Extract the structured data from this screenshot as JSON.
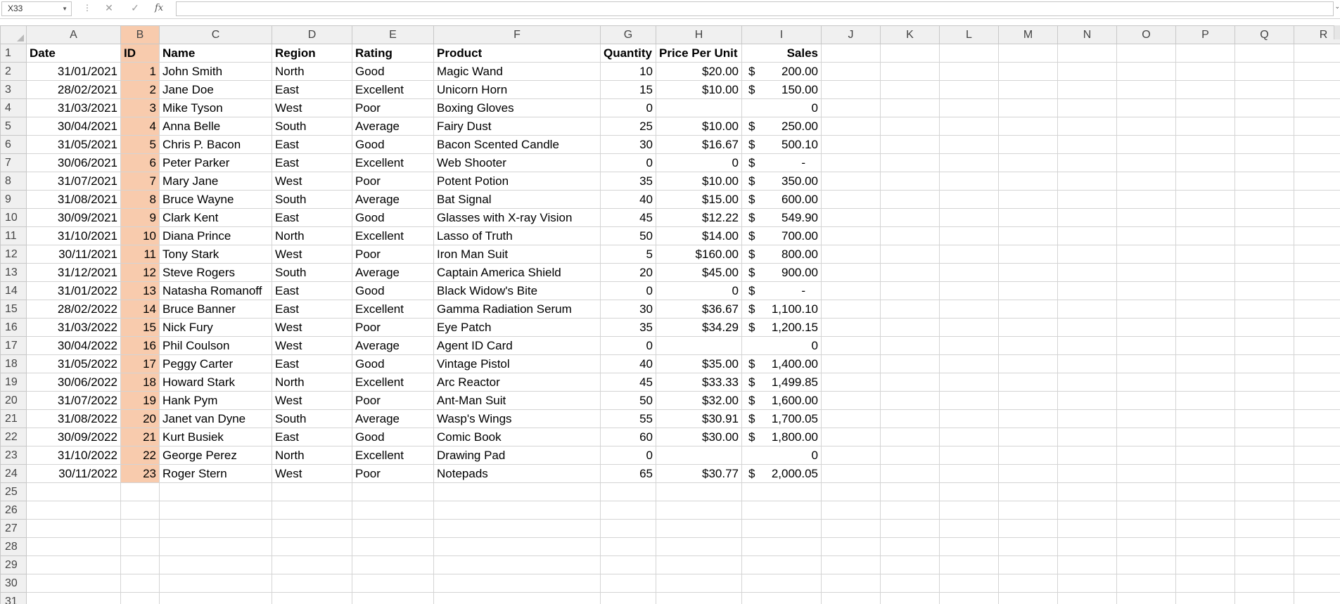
{
  "formula_bar": {
    "name_box": "X33",
    "cancel_icon": "✕",
    "enter_icon": "✓",
    "fx_label": "fx",
    "formula": ""
  },
  "columns": [
    "A",
    "B",
    "C",
    "D",
    "E",
    "F",
    "G",
    "H",
    "I",
    "J",
    "K",
    "L",
    "M",
    "N",
    "O",
    "P",
    "Q",
    "R"
  ],
  "header_row": [
    "Date",
    "ID",
    "Name",
    "Region",
    "Rating",
    "Product",
    "Quantity",
    "Price Per Unit",
    "Sales"
  ],
  "rows": [
    [
      "31/01/2021",
      "1",
      "John Smith",
      "North",
      "Good",
      "Magic Wand",
      "10",
      "$20.00",
      "$",
      "200.00"
    ],
    [
      "28/02/2021",
      "2",
      "Jane Doe",
      "East",
      "Excellent",
      "Unicorn Horn",
      "15",
      "$10.00",
      "$",
      "150.00"
    ],
    [
      "31/03/2021",
      "3",
      "Mike Tyson",
      "West",
      "Poor",
      "Boxing Gloves",
      "0",
      "",
      "",
      "0"
    ],
    [
      "30/04/2021",
      "4",
      "Anna Belle",
      "South",
      "Average",
      "Fairy Dust",
      "25",
      "$10.00",
      "$",
      "250.00"
    ],
    [
      "31/05/2021",
      "5",
      "Chris P. Bacon",
      "East",
      "Good",
      "Bacon Scented Candle",
      "30",
      "$16.67",
      "$",
      "500.10"
    ],
    [
      "30/06/2021",
      "6",
      "Peter Parker",
      "East",
      "Excellent",
      "Web Shooter",
      "0",
      "0",
      "$",
      "-"
    ],
    [
      "31/07/2021",
      "7",
      "Mary Jane",
      "West",
      "Poor",
      "Potent Potion",
      "35",
      "$10.00",
      "$",
      "350.00"
    ],
    [
      "31/08/2021",
      "8",
      "Bruce Wayne",
      "South",
      "Average",
      "Bat Signal",
      "40",
      "$15.00",
      "$",
      "600.00"
    ],
    [
      "30/09/2021",
      "9",
      "Clark Kent",
      "East",
      "Good",
      "Glasses with X-ray Vision",
      "45",
      "$12.22",
      "$",
      "549.90"
    ],
    [
      "31/10/2021",
      "10",
      "Diana Prince",
      "North",
      "Excellent",
      "Lasso of Truth",
      "50",
      "$14.00",
      "$",
      "700.00"
    ],
    [
      "30/11/2021",
      "11",
      "Tony Stark",
      "West",
      "Poor",
      "Iron Man Suit",
      "5",
      "$160.00",
      "$",
      "800.00"
    ],
    [
      "31/12/2021",
      "12",
      "Steve Rogers",
      "South",
      "Average",
      "Captain America Shield",
      "20",
      "$45.00",
      "$",
      "900.00"
    ],
    [
      "31/01/2022",
      "13",
      "Natasha Romanoff",
      "East",
      "Good",
      "Black Widow's Bite",
      "0",
      "0",
      "$",
      "-"
    ],
    [
      "28/02/2022",
      "14",
      "Bruce Banner",
      "East",
      "Excellent",
      "Gamma Radiation Serum",
      "30",
      "$36.67",
      "$",
      "1,100.10"
    ],
    [
      "31/03/2022",
      "15",
      "Nick Fury",
      "West",
      "Poor",
      "Eye Patch",
      "35",
      "$34.29",
      "$",
      "1,200.15"
    ],
    [
      "30/04/2022",
      "16",
      "Phil Coulson",
      "West",
      "Average",
      "Agent ID Card",
      "0",
      "",
      "",
      "0"
    ],
    [
      "31/05/2022",
      "17",
      "Peggy Carter",
      "East",
      "Good",
      "Vintage Pistol",
      "40",
      "$35.00",
      "$",
      "1,400.00"
    ],
    [
      "30/06/2022",
      "18",
      "Howard Stark",
      "North",
      "Excellent",
      "Arc Reactor",
      "45",
      "$33.33",
      "$",
      "1,499.85"
    ],
    [
      "31/07/2022",
      "19",
      "Hank Pym",
      "West",
      "Poor",
      "Ant-Man Suit",
      "50",
      "$32.00",
      "$",
      "1,600.00"
    ],
    [
      "31/08/2022",
      "20",
      "Janet van Dyne",
      "South",
      "Average",
      "Wasp's Wings",
      "55",
      "$30.91",
      "$",
      "1,700.05"
    ],
    [
      "30/09/2022",
      "21",
      "Kurt Busiek",
      "East",
      "Good",
      "Comic Book",
      "60",
      "$30.00",
      "$",
      "1,800.00"
    ],
    [
      "31/10/2022",
      "22",
      "George Perez",
      "North",
      "Excellent",
      "Drawing Pad",
      "0",
      "",
      "",
      "0"
    ],
    [
      "30/11/2022",
      "23",
      "Roger Stern",
      "West",
      "Poor",
      "Notepads",
      "65",
      "$30.77",
      "$",
      "2,000.05"
    ]
  ],
  "row_numbers": [
    "1",
    "2",
    "3",
    "4",
    "5",
    "6",
    "7",
    "8",
    "9",
    "10",
    "11",
    "12",
    "13",
    "14",
    "15",
    "16",
    "17",
    "18",
    "19",
    "20",
    "21",
    "22",
    "23",
    "24",
    "25",
    "26",
    "27",
    "28",
    "29",
    "30",
    "31"
  ],
  "colors": {
    "id_highlight": "#f8cbad",
    "header_bg": "#f0f0f0",
    "gridline": "#d4d4d4"
  }
}
